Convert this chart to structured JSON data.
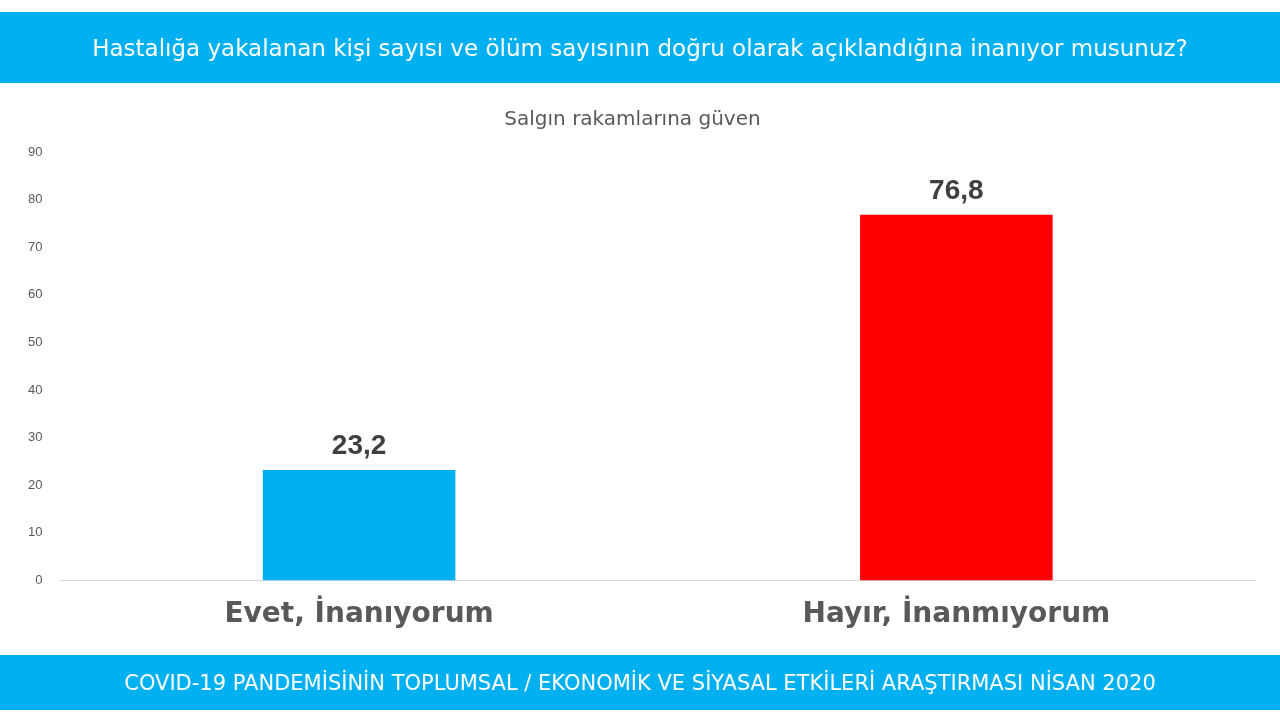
{
  "chart_data": {
    "type": "bar",
    "title": "Hastalığa yakalanan kişi sayısı ve ölüm sayısının doğru olarak açıklandığına inanıyor musunuz?",
    "subtitle": "Salgın rakamlarına güven",
    "categories": [
      "Evet, İnanıyorum",
      "Hayır, İnanmıyorum"
    ],
    "values": [
      23.2,
      76.8
    ],
    "colors": [
      "#00b0f0",
      "#ff0000"
    ],
    "value_labels": [
      "23,2",
      "76,8"
    ],
    "ylim": [
      0,
      90
    ],
    "yticks": [
      0,
      10,
      20,
      30,
      40,
      50,
      60,
      70,
      80,
      90
    ],
    "grid": false,
    "legend": false,
    "annotations": [
      "COVID-19 PANDEMİSİNİN TOPLUMSAL / EKONOMİK VE SİYASAL ETKİLERİ ARAŞTIRMASI NİSAN 2020"
    ]
  }
}
